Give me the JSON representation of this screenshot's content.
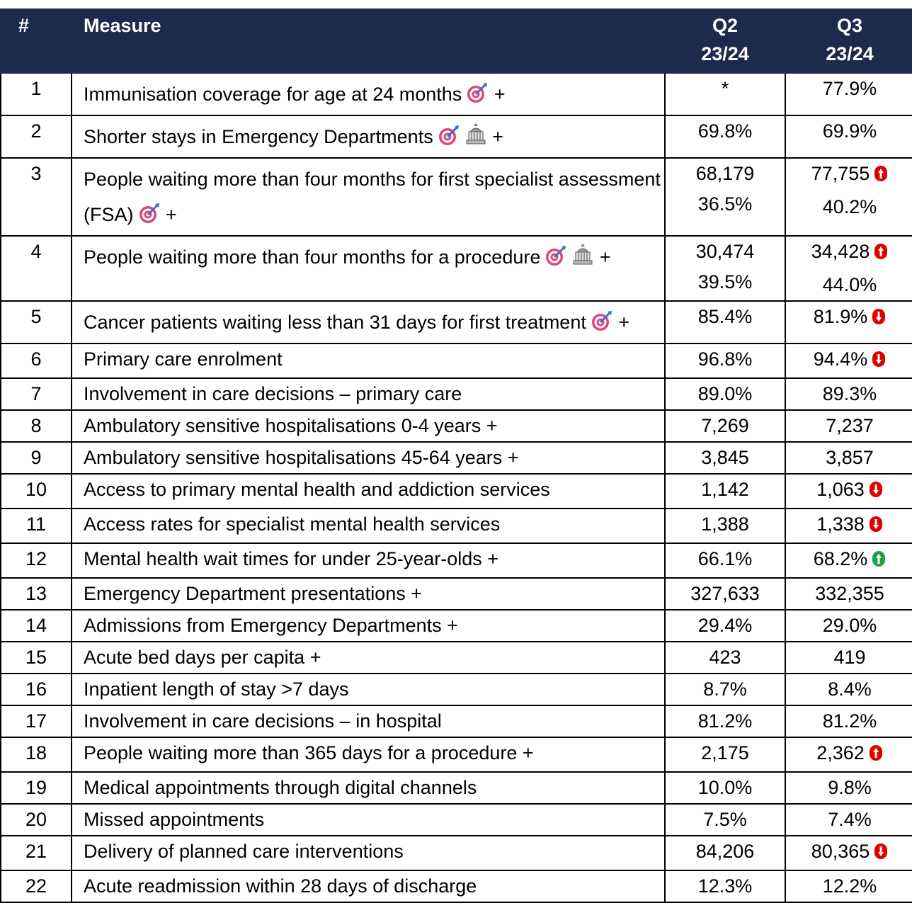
{
  "header": {
    "num": "#",
    "measure": "Measure",
    "q2": [
      "Q2",
      "23/24"
    ],
    "q3": [
      "Q3",
      "23/24"
    ]
  },
  "rows": [
    {
      "num": "1",
      "measure": "Immunisation coverage for age at 24 months",
      "suffix": "+",
      "q2": [
        "*"
      ],
      "q3": [
        "77.9%"
      ]
    },
    {
      "num": "2",
      "measure": "Shorter stays in Emergency Departments",
      "suffix": "+",
      "q2": [
        "69.8%"
      ],
      "q3": [
        "69.9%"
      ]
    },
    {
      "num": "3",
      "measure": "People waiting more than four months for first specialist assessment (FSA)",
      "suffix": "+",
      "q2": [
        "68,179",
        "36.5%"
      ],
      "q3": [
        "77,755",
        "40.2%"
      ]
    },
    {
      "num": "4",
      "measure": "People waiting more than four months for a procedure",
      "suffix": "+",
      "q2": [
        "30,474",
        "39.5%"
      ],
      "q3": [
        "34,428",
        "44.0%"
      ]
    },
    {
      "num": "5",
      "measure": "Cancer patients waiting less than 31 days for first treatment",
      "suffix": "+",
      "q2": [
        "85.4%"
      ],
      "q3": [
        "81.9%"
      ]
    },
    {
      "num": "6",
      "measure": "Primary care enrolment",
      "q2": [
        "96.8%"
      ],
      "q3": [
        "94.4%"
      ]
    },
    {
      "num": "7",
      "measure": "Involvement in care decisions – primary care",
      "q2": [
        "89.0%"
      ],
      "q3": [
        "89.3%"
      ]
    },
    {
      "num": "8",
      "measure": "Ambulatory sensitive hospitalisations 0-4 years +",
      "q2": [
        "7,269"
      ],
      "q3": [
        "7,237"
      ]
    },
    {
      "num": "9",
      "measure": "Ambulatory sensitive hospitalisations 45-64 years +",
      "q2": [
        "3,845"
      ],
      "q3": [
        "3,857"
      ]
    },
    {
      "num": "10",
      "measure": "Access to primary mental health and addiction services",
      "q2": [
        "1,142"
      ],
      "q3": [
        "1,063"
      ]
    },
    {
      "num": "11",
      "measure": "Access rates for specialist mental health services",
      "q2": [
        "1,388"
      ],
      "q3": [
        "1,338"
      ]
    },
    {
      "num": "12",
      "measure": "Mental health wait times for under 25-year-olds +",
      "q2": [
        "66.1%"
      ],
      "q3": [
        "68.2%"
      ]
    },
    {
      "num": "13",
      "measure": "Emergency Department presentations +",
      "q2": [
        "327,633"
      ],
      "q3": [
        "332,355"
      ]
    },
    {
      "num": "14",
      "measure": "Admissions from Emergency Departments +",
      "q2": [
        "29.4%"
      ],
      "q3": [
        "29.0%"
      ]
    },
    {
      "num": "15",
      "measure": "Acute bed days per capita +",
      "q2": [
        "423"
      ],
      "q3": [
        "419"
      ]
    },
    {
      "num": "16",
      "measure": "Inpatient length of stay >7 days",
      "q2": [
        "8.7%"
      ],
      "q3": [
        "8.4%"
      ]
    },
    {
      "num": "17",
      "measure": "Involvement in care decisions – in hospital",
      "q2": [
        "81.2%"
      ],
      "q3": [
        "81.2%"
      ]
    },
    {
      "num": "18",
      "measure": "People waiting more than 365 days for a procedure +",
      "q2": [
        "2,175"
      ],
      "q3": [
        "2,362"
      ]
    },
    {
      "num": "19",
      "measure": "Medical appointments through digital channels",
      "q2": [
        "10.0%"
      ],
      "q3": [
        "9.8%"
      ]
    },
    {
      "num": "20",
      "measure": "Missed appointments",
      "q2": [
        "7.5%"
      ],
      "q3": [
        "7.4%"
      ]
    },
    {
      "num": "21",
      "measure": "Delivery of planned care interventions",
      "q2": [
        "84,206"
      ],
      "q3": [
        "80,365"
      ]
    },
    {
      "num": "22",
      "measure": "Acute readmission within 28 days of discharge",
      "q2": [
        "12.3%"
      ],
      "q3": [
        "12.2%"
      ]
    }
  ]
}
